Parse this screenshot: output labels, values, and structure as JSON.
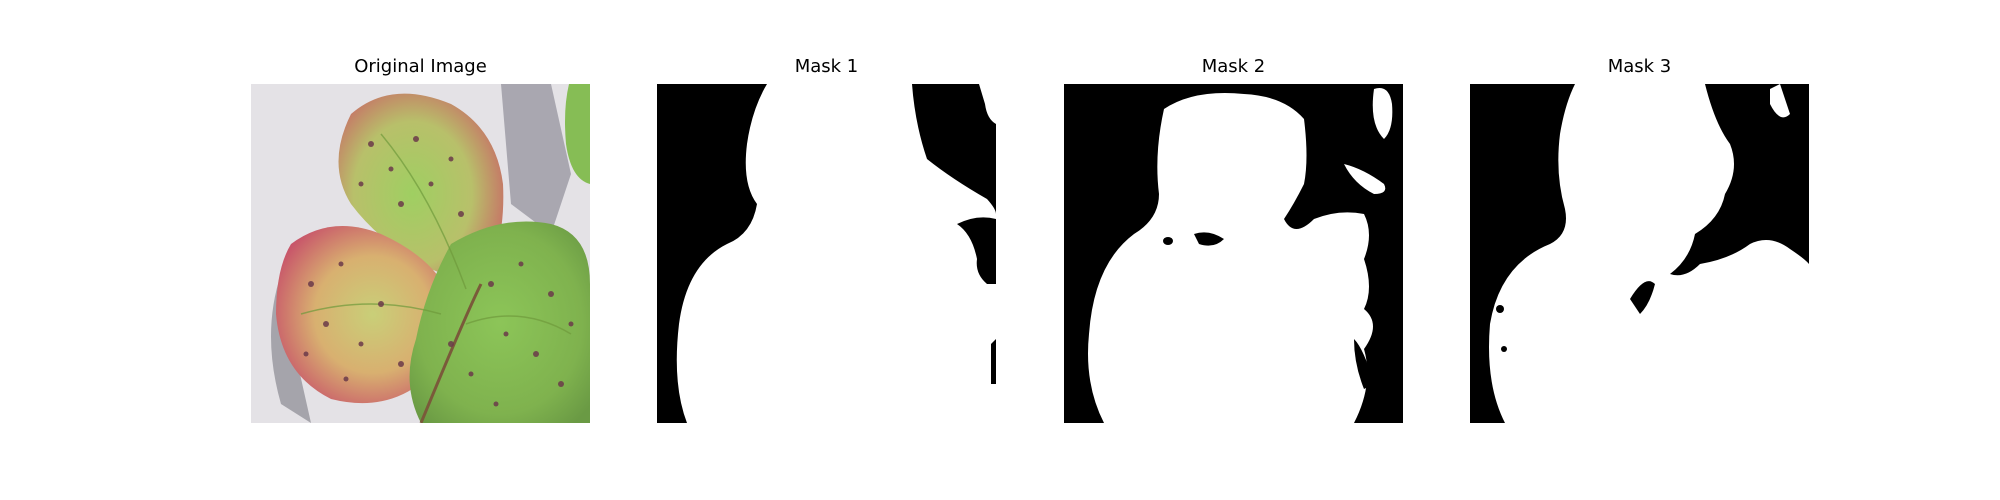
{
  "figure": {
    "panels": [
      {
        "title": "Original Image",
        "kind": "photo"
      },
      {
        "title": "Mask 1",
        "kind": "mask"
      },
      {
        "title": "Mask 2",
        "kind": "mask"
      },
      {
        "title": "Mask 3",
        "kind": "mask"
      }
    ],
    "colors": {
      "background": "#ffffff",
      "mask_foreground": "#ffffff",
      "mask_background": "#000000",
      "leaf_green": "#8fc35a",
      "leaf_red_edge": "#c0506a",
      "lesion": "#6b3a4a",
      "shadow": "#8a8a92",
      "surface": "#e4e2e6"
    }
  }
}
